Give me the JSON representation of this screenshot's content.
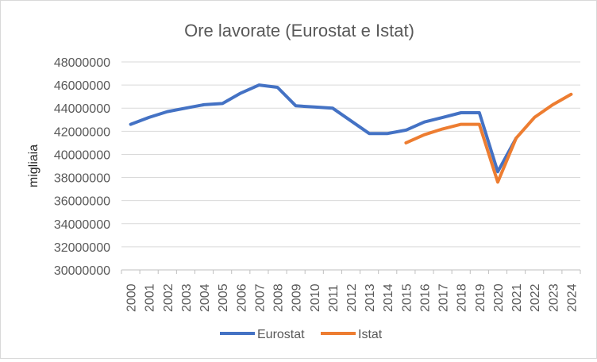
{
  "chart_data": {
    "type": "line",
    "title": "Ore lavorate (Eurostat e Istat)",
    "xlabel": "",
    "ylabel": "migliaia",
    "ylim": [
      30000000,
      48000000
    ],
    "ytick_step": 2000000,
    "grid": true,
    "legend": "bottom",
    "categories": [
      "2000",
      "2001",
      "2002",
      "2003",
      "2004",
      "2005",
      "2006",
      "2007",
      "2008",
      "2009",
      "2010",
      "2011",
      "2012",
      "2013",
      "2014",
      "2015",
      "2016",
      "2017",
      "2018",
      "2019",
      "2020",
      "2021",
      "2022",
      "2023",
      "2024"
    ],
    "yticks": [
      "30000000",
      "32000000",
      "34000000",
      "36000000",
      "38000000",
      "40000000",
      "42000000",
      "44000000",
      "46000000",
      "48000000"
    ],
    "series": [
      {
        "name": "Eurostat",
        "color": "#4472C4",
        "values": [
          42600000,
          43200000,
          43700000,
          44000000,
          44300000,
          44400000,
          45300000,
          46000000,
          45800000,
          44200000,
          44100000,
          44000000,
          42900000,
          41800000,
          41800000,
          42100000,
          42800000,
          43200000,
          43600000,
          43600000,
          38500000,
          41400000,
          null,
          null,
          null
        ]
      },
      {
        "name": "Istat",
        "color": "#ED7D31",
        "values": [
          null,
          null,
          null,
          null,
          null,
          null,
          null,
          null,
          null,
          null,
          null,
          null,
          null,
          null,
          null,
          41000000,
          41700000,
          42200000,
          42600000,
          42600000,
          37600000,
          41400000,
          43200000,
          44300000,
          45200000
        ]
      }
    ]
  }
}
